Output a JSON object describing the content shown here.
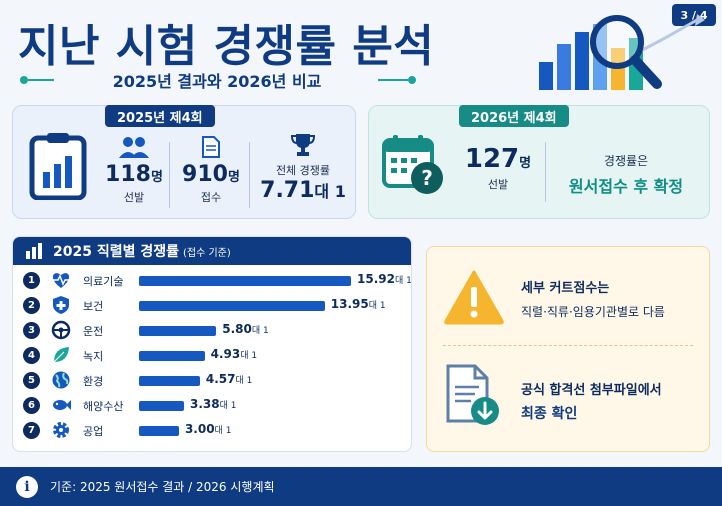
{
  "page_indicator": "3 / 4",
  "title": "지난 시험 경쟁률 분석",
  "subtitle": "2025년 결과와 2026년 비교",
  "card_2025": {
    "tag": "2025년 제4회",
    "selected": {
      "value": "118",
      "unit": "명",
      "label": "선발"
    },
    "applied": {
      "value": "910",
      "unit": "명",
      "label": "접수"
    },
    "rate": {
      "label": "전체 경쟁률",
      "value": "7.71",
      "unit": "대 1"
    }
  },
  "card_2026": {
    "tag": "2026년 제4회",
    "selected": {
      "value": "127",
      "unit": "명",
      "label": "선발"
    },
    "rate_label": "경쟁률은",
    "rate_value": "원서접수 후 확정"
  },
  "ranking": {
    "title": "2025 직렬별 경쟁률",
    "note": "(접수 기준)",
    "unit": "대 1",
    "items": [
      {
        "rank": "1",
        "name": "의료기술",
        "value": "15.92",
        "icon": "heartbeat-icon"
      },
      {
        "rank": "2",
        "name": "보건",
        "value": "13.95",
        "icon": "medical-shield-icon"
      },
      {
        "rank": "3",
        "name": "운전",
        "value": "5.80",
        "icon": "steering-wheel-icon"
      },
      {
        "rank": "4",
        "name": "녹지",
        "value": "4.93",
        "icon": "leaf-icon"
      },
      {
        "rank": "5",
        "name": "환경",
        "value": "4.57",
        "icon": "globe-icon"
      },
      {
        "rank": "6",
        "name": "해양수산",
        "value": "3.38",
        "icon": "fish-icon"
      },
      {
        "rank": "7",
        "name": "공업",
        "value": "3.00",
        "icon": "gear-icon"
      }
    ]
  },
  "notes": {
    "cutoff_line1": "세부 커트점수는",
    "cutoff_line2": "직렬·직류·임용기관별로 다름",
    "official_line1": "공식 합격선 첨부파일에서",
    "official_line2": "최종 확인"
  },
  "footer": "기준: 2025 원서접수 결과 / 2026 시행계획",
  "colors": {
    "navy": "#0f3b82",
    "teal": "#178b86",
    "bar": "#1558c0",
    "warning": "#f5b52e"
  }
}
